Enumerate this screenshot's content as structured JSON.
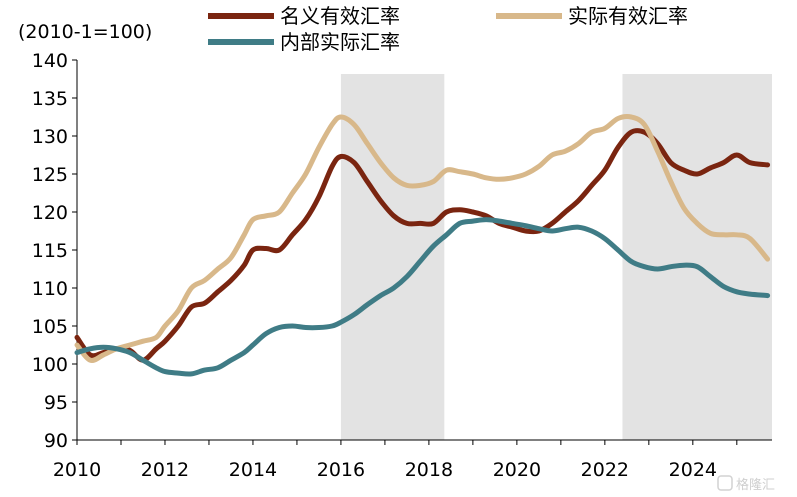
{
  "chart_data": {
    "type": "line",
    "unit_label": "(2010-1=100)",
    "ylim": [
      90,
      140
    ],
    "yticks": [
      90,
      95,
      100,
      105,
      110,
      115,
      120,
      125,
      130,
      135,
      140
    ],
    "xlim": [
      2010,
      2025.8
    ],
    "xticks": [
      2010,
      2012,
      2014,
      2016,
      2018,
      2020,
      2022,
      2024
    ],
    "grid": false,
    "legend": "top",
    "shaded_periods": [
      [
        2016.0,
        2018.35
      ],
      [
        2022.4,
        2025.8
      ]
    ],
    "series": [
      {
        "name": "名义有效汇率",
        "color": "#7a2510",
        "points": [
          [
            2010.0,
            103.5
          ],
          [
            2010.3,
            101.2
          ],
          [
            2010.6,
            101.5
          ],
          [
            2010.9,
            102.0
          ],
          [
            2011.2,
            101.8
          ],
          [
            2011.5,
            100.5
          ],
          [
            2011.8,
            102.0
          ],
          [
            2012.0,
            103.0
          ],
          [
            2012.3,
            105.0
          ],
          [
            2012.6,
            107.5
          ],
          [
            2012.9,
            108.0
          ],
          [
            2013.2,
            109.5
          ],
          [
            2013.5,
            111.0
          ],
          [
            2013.8,
            113.0
          ],
          [
            2014.0,
            115.0
          ],
          [
            2014.3,
            115.2
          ],
          [
            2014.6,
            115.0
          ],
          [
            2014.9,
            117.0
          ],
          [
            2015.2,
            119.0
          ],
          [
            2015.5,
            122.0
          ],
          [
            2015.8,
            126.0
          ],
          [
            2016.0,
            127.3
          ],
          [
            2016.3,
            126.5
          ],
          [
            2016.6,
            124.0
          ],
          [
            2016.9,
            121.5
          ],
          [
            2017.2,
            119.5
          ],
          [
            2017.5,
            118.5
          ],
          [
            2017.8,
            118.5
          ],
          [
            2018.1,
            118.5
          ],
          [
            2018.4,
            120.0
          ],
          [
            2018.7,
            120.3
          ],
          [
            2019.0,
            120.0
          ],
          [
            2019.3,
            119.5
          ],
          [
            2019.6,
            118.5
          ],
          [
            2019.9,
            118.0
          ],
          [
            2020.2,
            117.5
          ],
          [
            2020.5,
            117.5
          ],
          [
            2020.8,
            118.5
          ],
          [
            2021.1,
            120.0
          ],
          [
            2021.4,
            121.5
          ],
          [
            2021.7,
            123.5
          ],
          [
            2022.0,
            125.5
          ],
          [
            2022.3,
            128.5
          ],
          [
            2022.6,
            130.5
          ],
          [
            2022.9,
            130.5
          ],
          [
            2023.2,
            129.0
          ],
          [
            2023.5,
            126.5
          ],
          [
            2023.8,
            125.5
          ],
          [
            2024.1,
            125.0
          ],
          [
            2024.4,
            125.8
          ],
          [
            2024.7,
            126.5
          ],
          [
            2025.0,
            127.5
          ],
          [
            2025.3,
            126.5
          ],
          [
            2025.7,
            126.2
          ]
        ]
      },
      {
        "name": "实际有效汇率",
        "color": "#d8b88a",
        "points": [
          [
            2010.0,
            102.5
          ],
          [
            2010.3,
            100.5
          ],
          [
            2010.6,
            101.2
          ],
          [
            2010.9,
            102.0
          ],
          [
            2011.2,
            102.5
          ],
          [
            2011.5,
            103.0
          ],
          [
            2011.8,
            103.5
          ],
          [
            2012.0,
            105.0
          ],
          [
            2012.3,
            107.0
          ],
          [
            2012.6,
            110.0
          ],
          [
            2012.9,
            111.0
          ],
          [
            2013.2,
            112.5
          ],
          [
            2013.5,
            114.0
          ],
          [
            2013.8,
            117.0
          ],
          [
            2014.0,
            119.0
          ],
          [
            2014.3,
            119.5
          ],
          [
            2014.6,
            120.0
          ],
          [
            2014.9,
            122.5
          ],
          [
            2015.2,
            125.0
          ],
          [
            2015.5,
            128.5
          ],
          [
            2015.8,
            131.5
          ],
          [
            2016.0,
            132.5
          ],
          [
            2016.3,
            131.5
          ],
          [
            2016.6,
            129.0
          ],
          [
            2016.9,
            126.5
          ],
          [
            2017.2,
            124.5
          ],
          [
            2017.5,
            123.5
          ],
          [
            2017.8,
            123.5
          ],
          [
            2018.1,
            124.0
          ],
          [
            2018.4,
            125.5
          ],
          [
            2018.7,
            125.3
          ],
          [
            2019.0,
            125.0
          ],
          [
            2019.3,
            124.5
          ],
          [
            2019.6,
            124.3
          ],
          [
            2019.9,
            124.5
          ],
          [
            2020.2,
            125.0
          ],
          [
            2020.5,
            126.0
          ],
          [
            2020.8,
            127.5
          ],
          [
            2021.1,
            128.0
          ],
          [
            2021.4,
            129.0
          ],
          [
            2021.7,
            130.5
          ],
          [
            2022.0,
            131.0
          ],
          [
            2022.3,
            132.3
          ],
          [
            2022.6,
            132.5
          ],
          [
            2022.9,
            131.5
          ],
          [
            2023.2,
            128.0
          ],
          [
            2023.5,
            124.0
          ],
          [
            2023.8,
            120.5
          ],
          [
            2024.1,
            118.5
          ],
          [
            2024.4,
            117.2
          ],
          [
            2024.7,
            117.0
          ],
          [
            2025.0,
            117.0
          ],
          [
            2025.3,
            116.5
          ],
          [
            2025.7,
            113.8
          ]
        ]
      },
      {
        "name": "内部实际汇率",
        "color": "#3f7c86",
        "points": [
          [
            2010.0,
            101.5
          ],
          [
            2010.3,
            102.0
          ],
          [
            2010.6,
            102.2
          ],
          [
            2010.9,
            102.0
          ],
          [
            2011.2,
            101.5
          ],
          [
            2011.5,
            100.5
          ],
          [
            2011.8,
            99.5
          ],
          [
            2012.0,
            99.0
          ],
          [
            2012.3,
            98.8
          ],
          [
            2012.6,
            98.7
          ],
          [
            2012.9,
            99.2
          ],
          [
            2013.2,
            99.5
          ],
          [
            2013.5,
            100.5
          ],
          [
            2013.8,
            101.5
          ],
          [
            2014.0,
            102.5
          ],
          [
            2014.3,
            104.0
          ],
          [
            2014.6,
            104.8
          ],
          [
            2014.9,
            105.0
          ],
          [
            2015.2,
            104.8
          ],
          [
            2015.5,
            104.8
          ],
          [
            2015.8,
            105.0
          ],
          [
            2016.0,
            105.5
          ],
          [
            2016.3,
            106.5
          ],
          [
            2016.6,
            107.8
          ],
          [
            2016.9,
            109.0
          ],
          [
            2017.2,
            110.0
          ],
          [
            2017.5,
            111.5
          ],
          [
            2017.8,
            113.5
          ],
          [
            2018.1,
            115.5
          ],
          [
            2018.4,
            117.0
          ],
          [
            2018.7,
            118.5
          ],
          [
            2019.0,
            118.8
          ],
          [
            2019.3,
            119.0
          ],
          [
            2019.6,
            118.8
          ],
          [
            2019.9,
            118.5
          ],
          [
            2020.2,
            118.2
          ],
          [
            2020.5,
            117.8
          ],
          [
            2020.8,
            117.5
          ],
          [
            2021.1,
            117.8
          ],
          [
            2021.4,
            118.0
          ],
          [
            2021.7,
            117.5
          ],
          [
            2022.0,
            116.5
          ],
          [
            2022.3,
            115.0
          ],
          [
            2022.6,
            113.5
          ],
          [
            2022.9,
            112.8
          ],
          [
            2023.2,
            112.5
          ],
          [
            2023.5,
            112.8
          ],
          [
            2023.8,
            113.0
          ],
          [
            2024.1,
            112.8
          ],
          [
            2024.4,
            111.5
          ],
          [
            2024.7,
            110.2
          ],
          [
            2025.0,
            109.5
          ],
          [
            2025.3,
            109.2
          ],
          [
            2025.7,
            109.0
          ]
        ]
      }
    ]
  },
  "watermark": "格隆汇"
}
